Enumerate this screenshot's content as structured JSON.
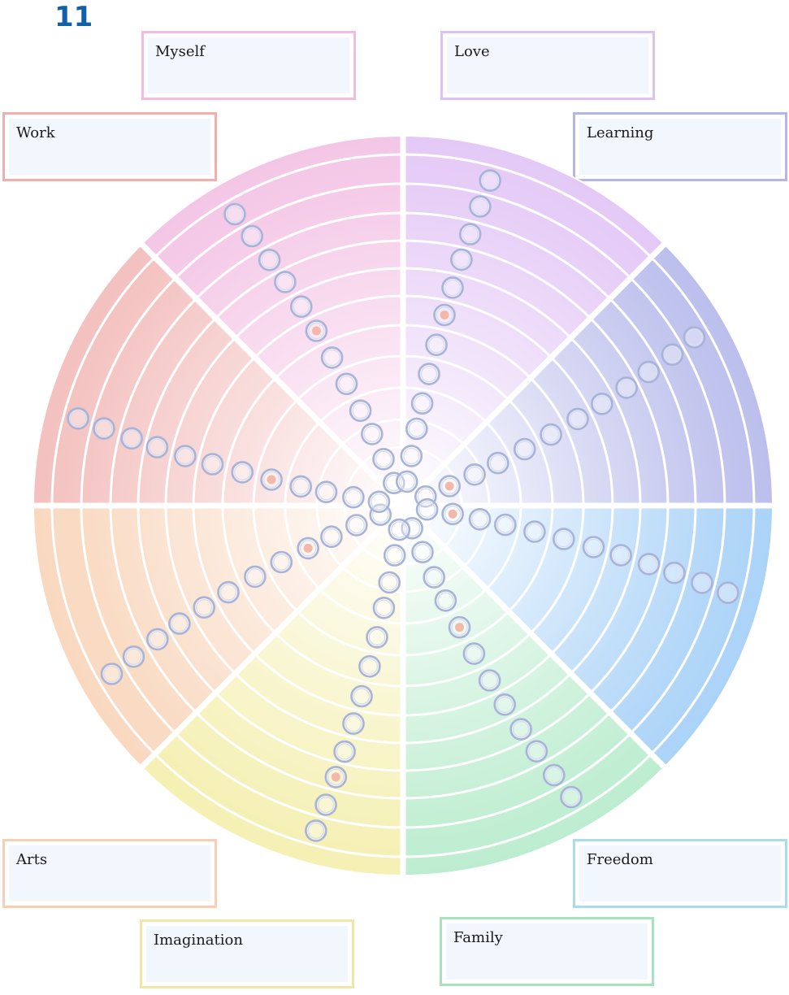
{
  "page_number": "11",
  "center_dot_color": "#f2b9a8",
  "categories": [
    {
      "key": "myself",
      "label": "Myself",
      "color": "#f4c6e6",
      "border": "#f0bde0",
      "selected": 7
    },
    {
      "key": "love",
      "label": "Love",
      "color": "#e4c9f6",
      "border": "#dcc2f2",
      "selected": 7
    },
    {
      "key": "learning",
      "label": "Learning",
      "color": "#bcbfec",
      "border": "#b3b6e6",
      "selected": 2
    },
    {
      "key": "freedom",
      "label": "Freedom",
      "color": "#abd3f8",
      "border": "#aadcea",
      "selected": 2
    },
    {
      "key": "family",
      "label": "Family",
      "color": "#bdedd0",
      "border": "#a7e1bd",
      "selected": 5
    },
    {
      "key": "imagination",
      "label": "Imagination",
      "color": "#f5f0b3",
      "border": "#f1e6a6",
      "selected": 10
    },
    {
      "key": "arts",
      "label": "Arts",
      "color": "#f9d8bf",
      "border": "#f8cfb2",
      "selected": 4
    },
    {
      "key": "work",
      "label": "Work",
      "color": "#f3c1bf",
      "border": "#f0aeae",
      "selected": 5
    }
  ]
}
